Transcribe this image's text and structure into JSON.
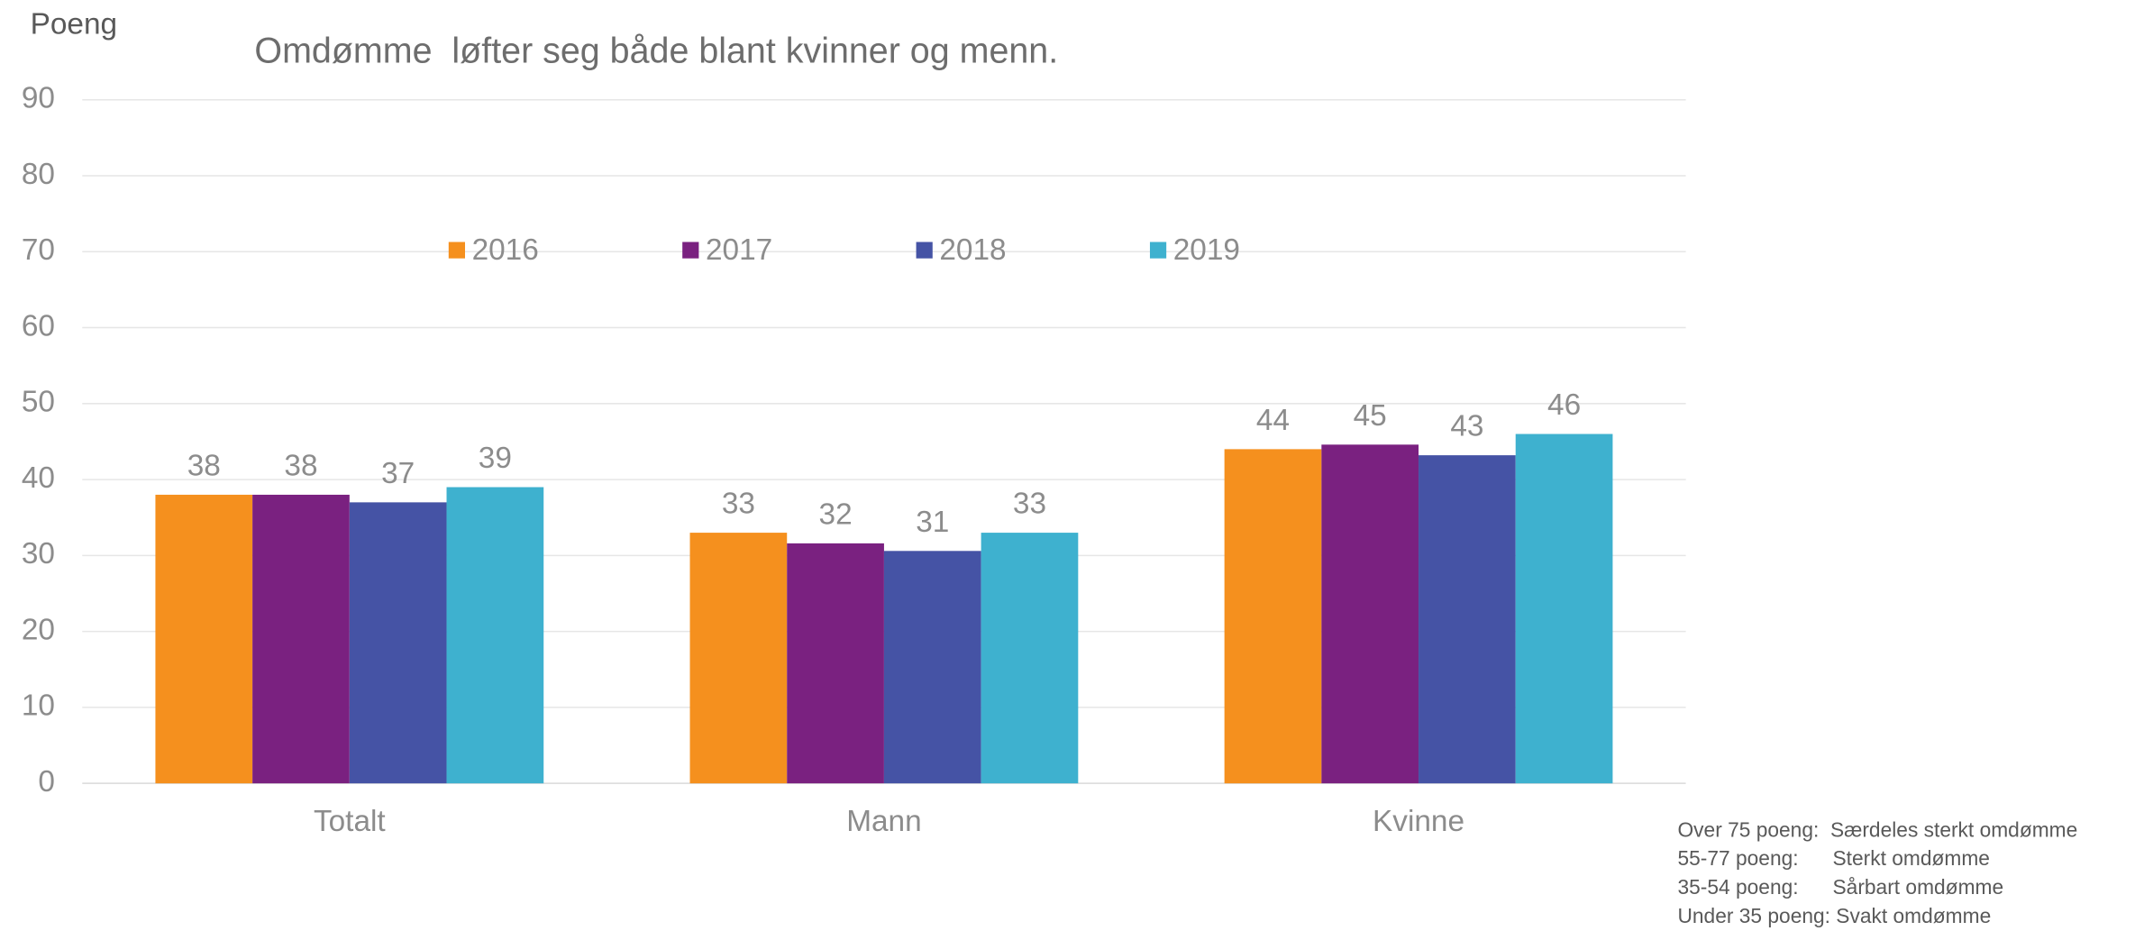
{
  "chart_data": {
    "type": "bar",
    "title": "Omdømme  løfter seg både blant kvinner og menn.",
    "y_label": "Poeng",
    "categories": [
      "Totalt",
      "Mann",
      "Kvinne"
    ],
    "series": [
      {
        "name": "2016",
        "color": "#f5901e",
        "values": [
          38,
          33,
          44
        ],
        "value_labels": [
          "38",
          "33",
          "44"
        ]
      },
      {
        "name": "2017",
        "color": "#7a2180",
        "values": [
          38,
          31.6,
          44.6
        ],
        "value_labels": [
          "38",
          "32",
          "45"
        ]
      },
      {
        "name": "2018",
        "color": "#4553a5",
        "values": [
          37,
          30.6,
          43.2
        ],
        "value_labels": [
          "37",
          "31",
          "43"
        ]
      },
      {
        "name": "2019",
        "color": "#3eb1cf",
        "values": [
          39,
          33,
          46
        ],
        "value_labels": [
          "39",
          "33",
          "46"
        ]
      }
    ],
    "ylim": [
      0,
      90
    ],
    "yticks": [
      0,
      10,
      20,
      30,
      40,
      50,
      60,
      70,
      80,
      90
    ],
    "grid": true,
    "notes": [
      "Over 75 poeng:  Særdeles sterkt omdømme",
      "55-77 poeng:      Sterkt omdømme",
      "35-54 poeng:      Sårbart omdømme",
      "Under 35 poeng: Svakt omdømme"
    ]
  }
}
